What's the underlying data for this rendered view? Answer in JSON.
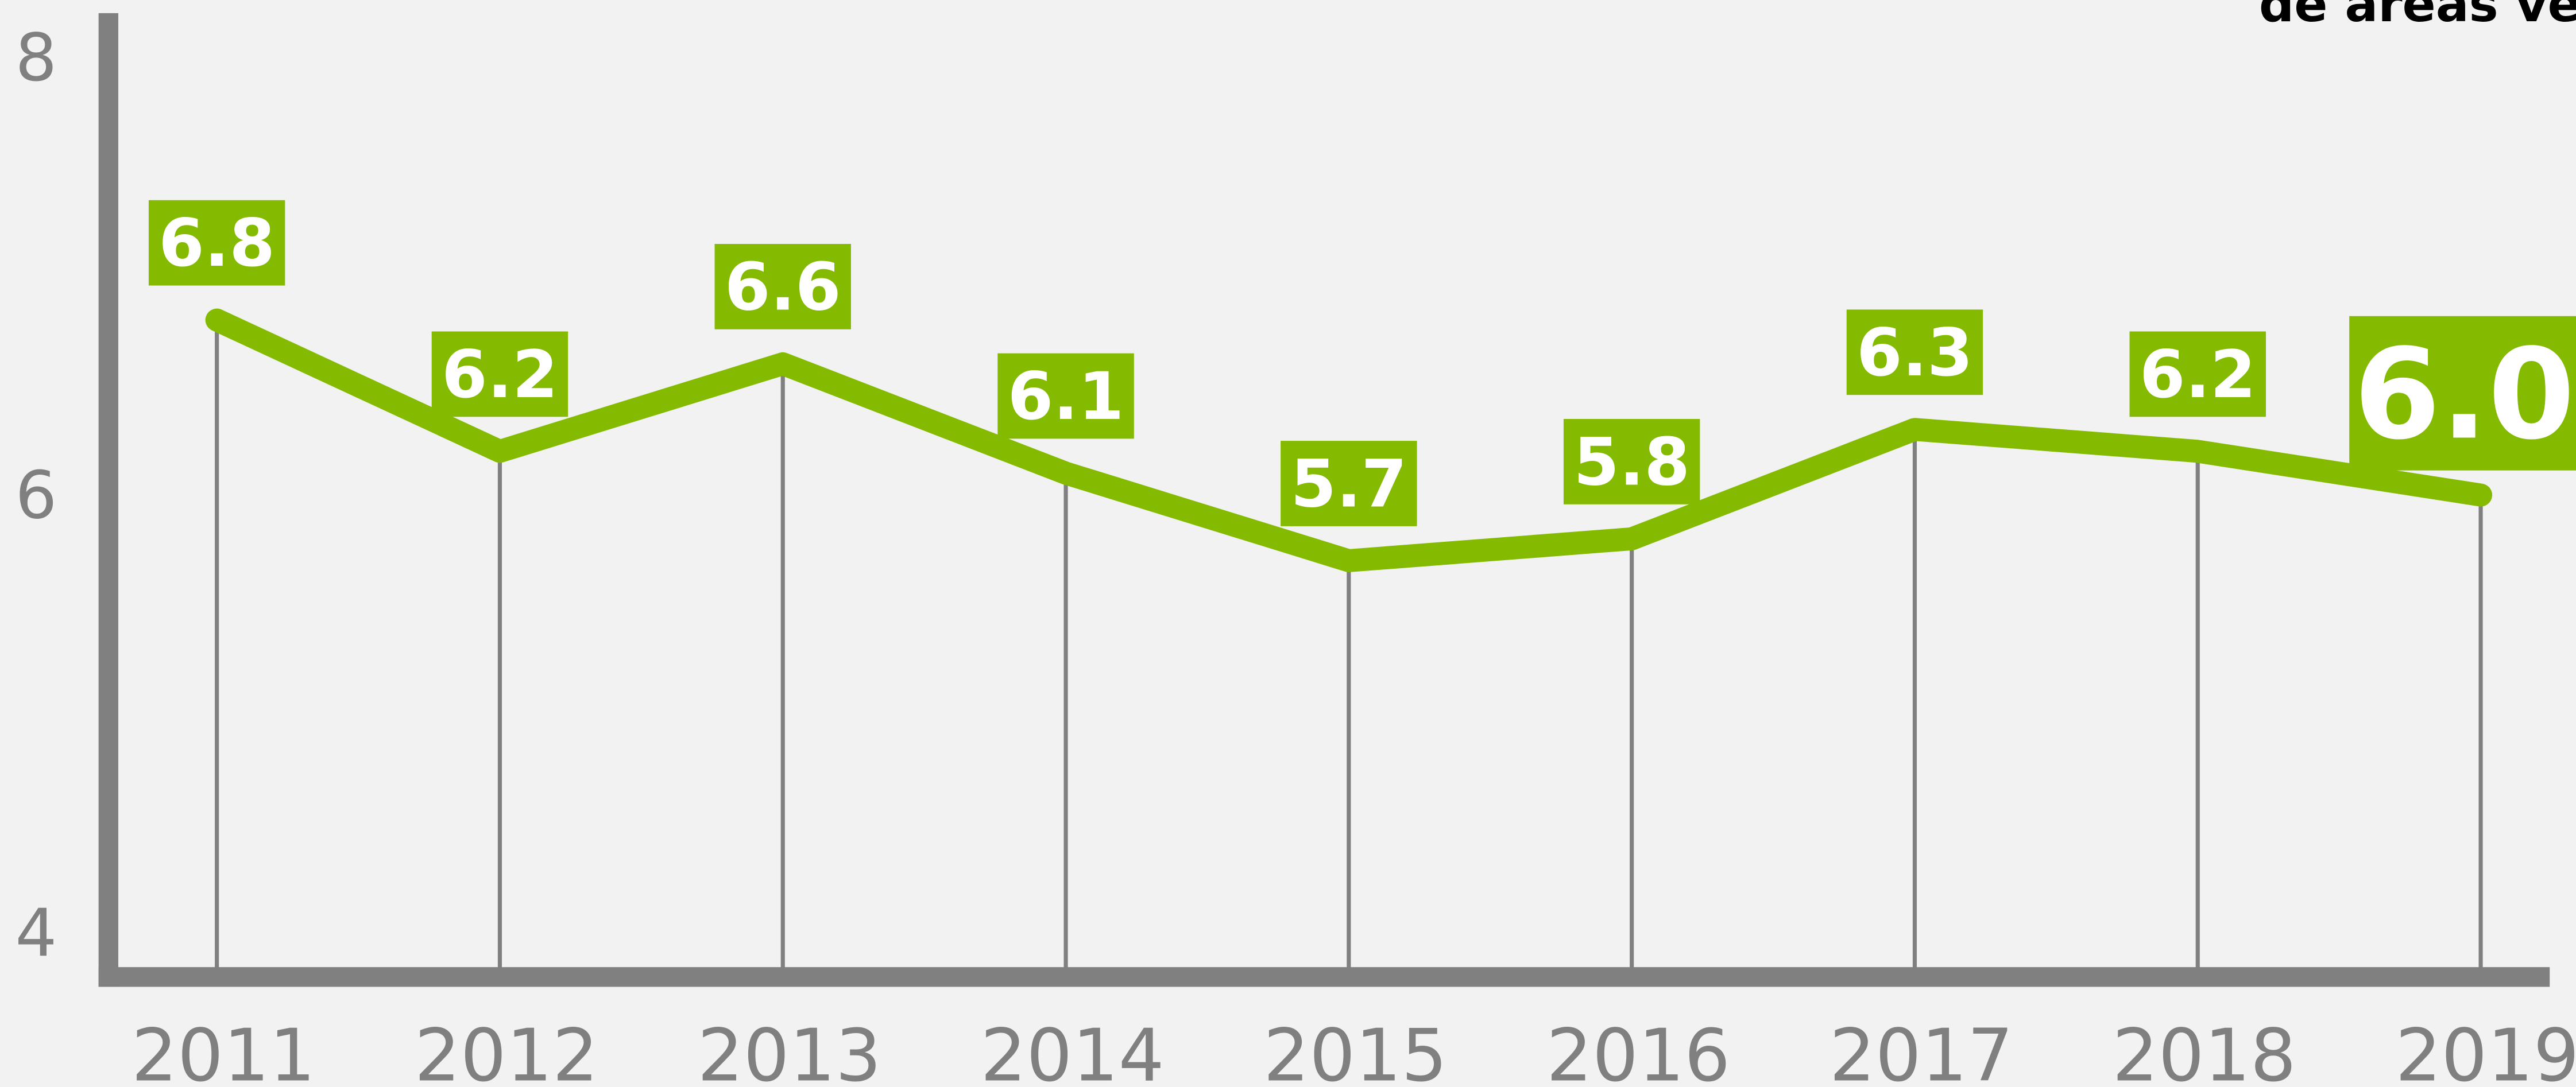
{
  "chart_data": {
    "type": "line",
    "title": "de areas ver",
    "categories": [
      "2011",
      "2012",
      "2013",
      "2014",
      "2015",
      "2016",
      "2017",
      "2018",
      "2019"
    ],
    "series": [
      {
        "name": "areas verdes",
        "color": "#84bb00",
        "values": [
          6.8,
          6.2,
          6.6,
          6.1,
          5.7,
          5.8,
          6.3,
          6.2,
          6.0
        ],
        "value_labels": [
          "6.8",
          "6.2",
          "6.6",
          "6.1",
          "5.7",
          "5.8",
          "6.3",
          "6.2",
          "6.0"
        ]
      }
    ],
    "ylim": [
      4,
      8
    ],
    "yticks": [
      4,
      6,
      8
    ]
  }
}
